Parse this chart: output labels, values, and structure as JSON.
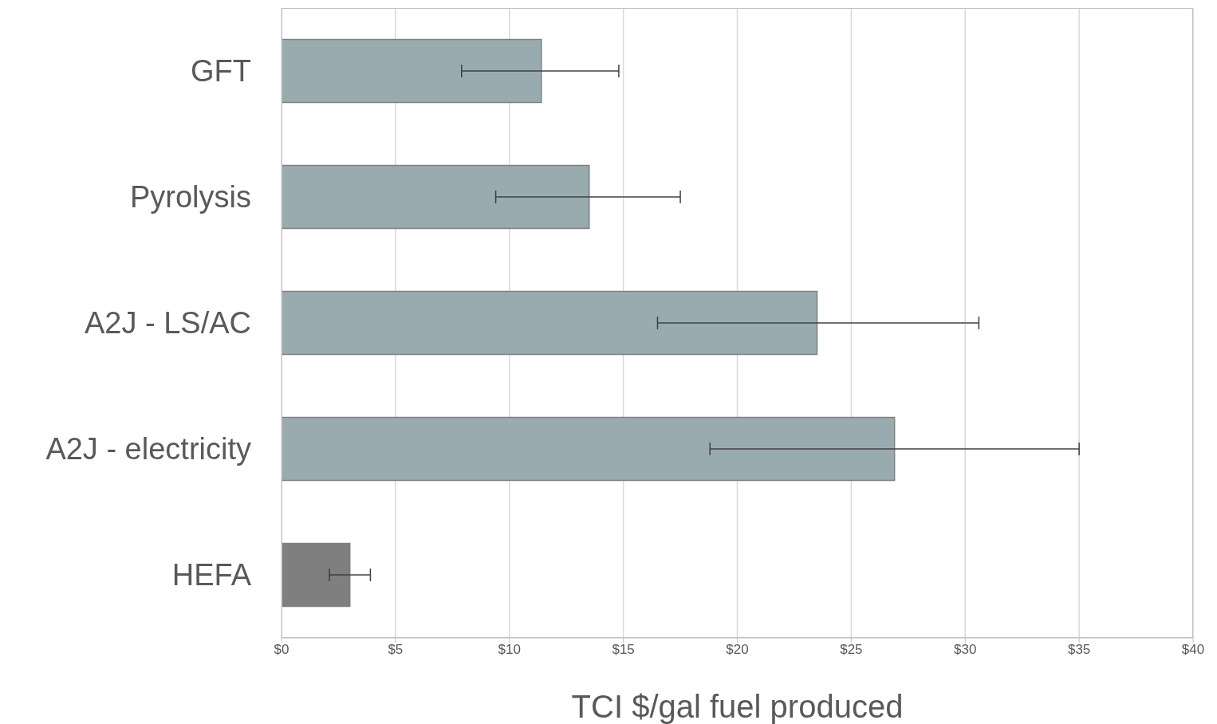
{
  "chart_data": {
    "type": "bar",
    "orientation": "horizontal",
    "xlabel": "TCI $/gal fuel produced",
    "categories": [
      "GFT",
      "Pyrolysis",
      "A2J - LS/AC",
      "A2J - electricity",
      "HEFA"
    ],
    "values": [
      11.4,
      13.5,
      23.5,
      26.9,
      3.0
    ],
    "colors": [
      "#9aabb0",
      "#9aabb0",
      "#9aabb0",
      "#9aabb0",
      "#7f7f7f"
    ],
    "errors": [
      [
        7.9,
        14.8
      ],
      [
        9.4,
        17.5
      ],
      [
        16.5,
        30.6
      ],
      [
        18.8,
        35.0
      ],
      [
        2.1,
        3.9
      ]
    ],
    "xlim": [
      0,
      40
    ],
    "xticks": [
      {
        "value": 0,
        "label": "$0"
      },
      {
        "value": 5,
        "label": "$5"
      },
      {
        "value": 10,
        "label": "$10"
      },
      {
        "value": 15,
        "label": "$15"
      },
      {
        "value": 20,
        "label": "$20"
      },
      {
        "value": 25,
        "label": "$25"
      },
      {
        "value": 30,
        "label": "$30"
      },
      {
        "value": 35,
        "label": "$35"
      },
      {
        "value": 40,
        "label": "$40"
      }
    ],
    "grid": "x",
    "legend": false
  }
}
